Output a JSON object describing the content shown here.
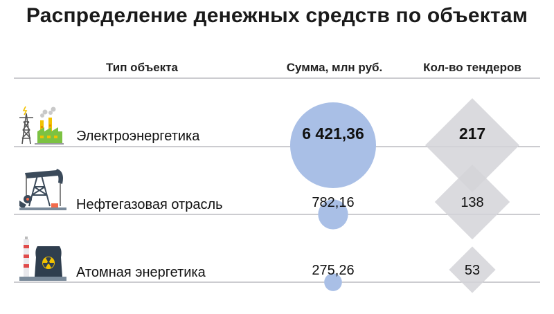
{
  "title": "Распределение денежных средств по объектам",
  "columns": {
    "type": "Тип объекта",
    "sum": "Сумма, млн руб.",
    "count": "Кол-во тендеров"
  },
  "rows": [
    {
      "label": "Электроэнергетика",
      "icon": "power-plant-icon",
      "sum_label": "6 421,36",
      "count_label": "217",
      "bold": true
    },
    {
      "label": "Нефтегазовая отрасль",
      "icon": "oil-pump-icon",
      "sum_label": "782,16",
      "count_label": "138",
      "bold": false
    },
    {
      "label": "Атомная энергетика",
      "icon": "nuclear-plant-icon",
      "sum_label": "275,26",
      "count_label": "53",
      "bold": false
    }
  ],
  "colors": {
    "bubble": "#a9bfe6",
    "diamond": "#d4d4d8",
    "line": "#9a9aa0"
  },
  "chart_data": {
    "type": "bubble-table",
    "categories": [
      "Электроэнергетика",
      "Нефтегазовая отрасль",
      "Атомная энергетика"
    ],
    "series": [
      {
        "name": "Сумма, млн руб.",
        "values": [
          6421.36,
          782.16,
          275.26
        ]
      },
      {
        "name": "Кол-во тендеров",
        "values": [
          217,
          138,
          53
        ]
      }
    ]
  }
}
